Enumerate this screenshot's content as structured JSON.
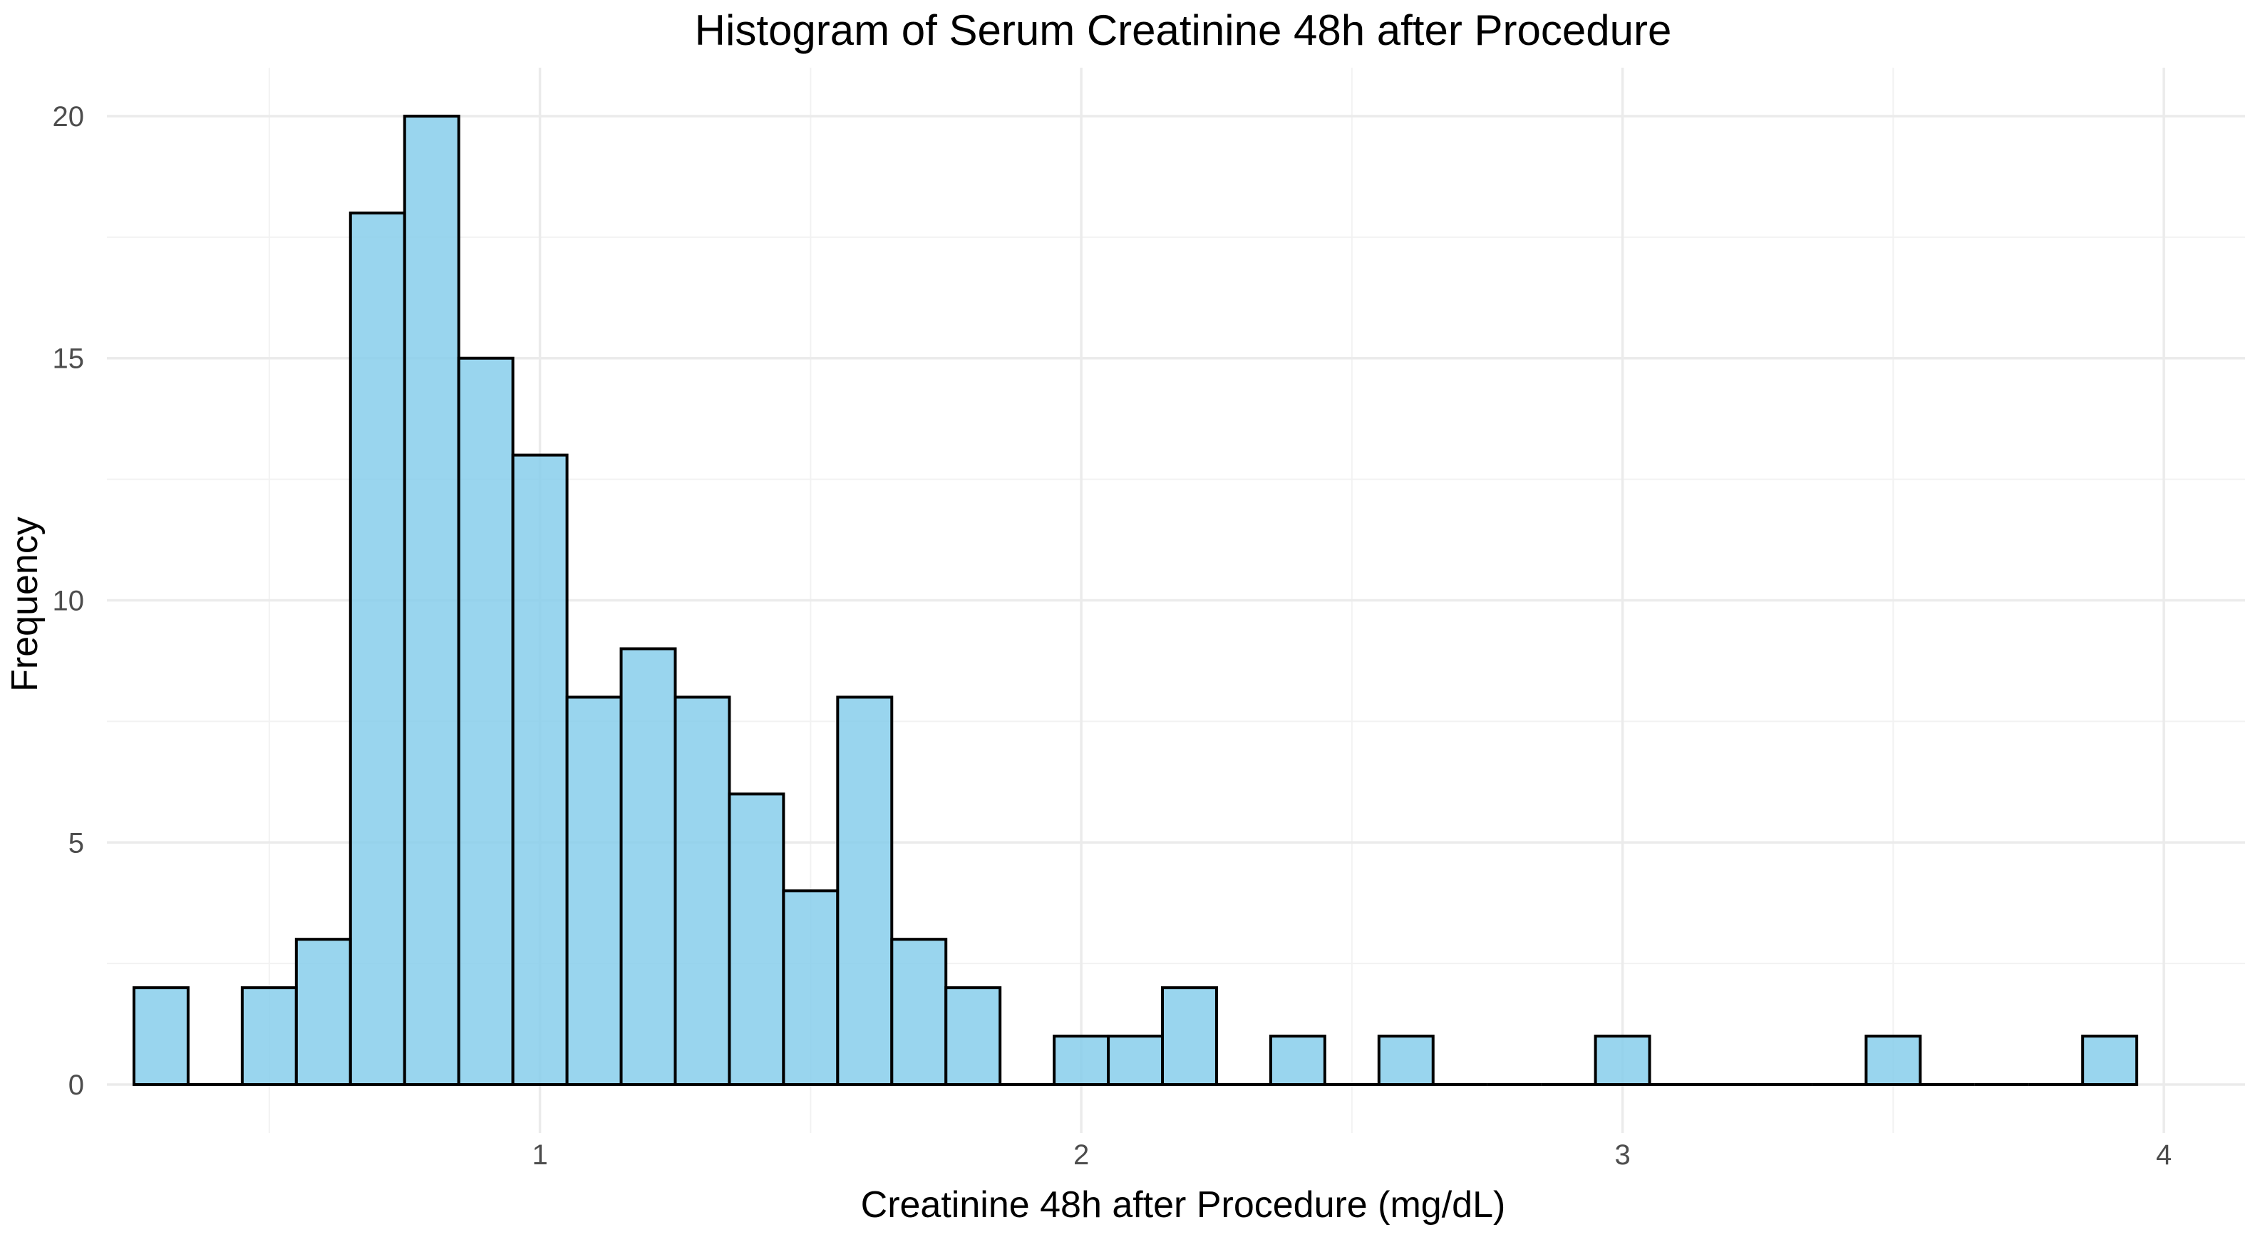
{
  "chart_data": {
    "type": "bar",
    "title": "Histogram of Serum Creatinine 48h after Procedure",
    "xlabel": "Creatinine 48h after Procedure (mg/dL)",
    "ylabel": "Frequency",
    "xlim": [
      0.2,
      4.15
    ],
    "ylim": [
      -1,
      21
    ],
    "x_ticks": [
      1,
      2,
      3,
      4
    ],
    "y_ticks": [
      0,
      5,
      10,
      15,
      20
    ],
    "x_minor": [
      0.5,
      1.5,
      2.5,
      3.5
    ],
    "y_minor": [
      2.5,
      7.5,
      12.5,
      17.5
    ],
    "grid": true,
    "bar_color": "#87ceeb",
    "bar_outline": "#000000",
    "bin_width": 0.1,
    "bins": [
      {
        "start": 0.25,
        "end": 0.35,
        "count": 2
      },
      {
        "start": 0.35,
        "end": 0.45,
        "count": 0
      },
      {
        "start": 0.45,
        "end": 0.55,
        "count": 2
      },
      {
        "start": 0.55,
        "end": 0.65,
        "count": 3
      },
      {
        "start": 0.65,
        "end": 0.75,
        "count": 18
      },
      {
        "start": 0.75,
        "end": 0.85,
        "count": 20
      },
      {
        "start": 0.85,
        "end": 0.95,
        "count": 15
      },
      {
        "start": 0.95,
        "end": 1.05,
        "count": 13
      },
      {
        "start": 1.05,
        "end": 1.15,
        "count": 8
      },
      {
        "start": 1.15,
        "end": 1.25,
        "count": 9
      },
      {
        "start": 1.25,
        "end": 1.35,
        "count": 8
      },
      {
        "start": 1.35,
        "end": 1.45,
        "count": 6
      },
      {
        "start": 1.45,
        "end": 1.55,
        "count": 4
      },
      {
        "start": 1.55,
        "end": 1.65,
        "count": 8
      },
      {
        "start": 1.65,
        "end": 1.75,
        "count": 3
      },
      {
        "start": 1.75,
        "end": 1.85,
        "count": 2
      },
      {
        "start": 1.85,
        "end": 1.95,
        "count": 0
      },
      {
        "start": 1.95,
        "end": 2.05,
        "count": 1
      },
      {
        "start": 2.05,
        "end": 2.15,
        "count": 1
      },
      {
        "start": 2.15,
        "end": 2.25,
        "count": 2
      },
      {
        "start": 2.25,
        "end": 2.35,
        "count": 0
      },
      {
        "start": 2.35,
        "end": 2.45,
        "count": 1
      },
      {
        "start": 2.45,
        "end": 2.55,
        "count": 0
      },
      {
        "start": 2.55,
        "end": 2.65,
        "count": 1
      },
      {
        "start": 2.65,
        "end": 2.75,
        "count": 0
      },
      {
        "start": 2.75,
        "end": 2.85,
        "count": 0
      },
      {
        "start": 2.85,
        "end": 2.95,
        "count": 0
      },
      {
        "start": 2.95,
        "end": 3.05,
        "count": 1
      },
      {
        "start": 3.05,
        "end": 3.15,
        "count": 0
      },
      {
        "start": 3.15,
        "end": 3.25,
        "count": 0
      },
      {
        "start": 3.25,
        "end": 3.35,
        "count": 0
      },
      {
        "start": 3.35,
        "end": 3.45,
        "count": 0
      },
      {
        "start": 3.45,
        "end": 3.55,
        "count": 1
      },
      {
        "start": 3.55,
        "end": 3.65,
        "count": 0
      },
      {
        "start": 3.65,
        "end": 3.75,
        "count": 0
      },
      {
        "start": 3.75,
        "end": 3.85,
        "count": 0
      },
      {
        "start": 3.85,
        "end": 3.95,
        "count": 1
      }
    ]
  }
}
